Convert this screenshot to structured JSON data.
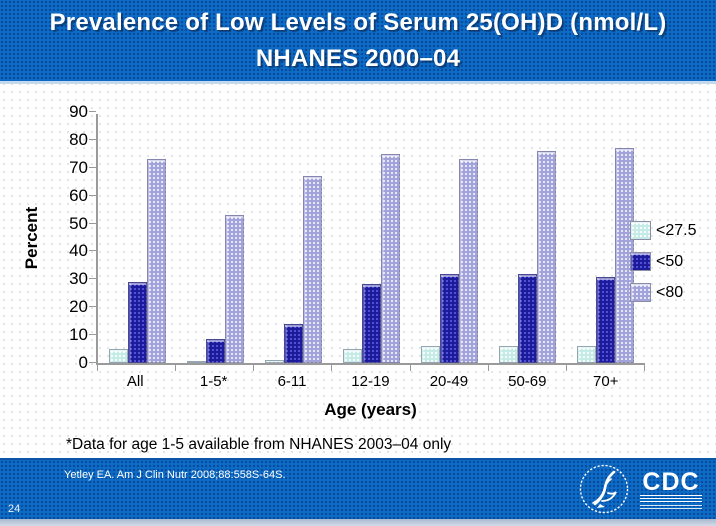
{
  "slide": {
    "title_line1": "Prevalence of Low Levels of Serum 25(OH)D (nmol/L)",
    "title_line2": "NHANES 2000–04",
    "footnote": "*Data for age 1-5 available from NHANES 2003–04 only",
    "page_number": "24"
  },
  "footer": {
    "citation": "Yetley EA. Am J Clin Nutr 2008;88:558S-64S.",
    "cdc_logo_text": "CDC"
  },
  "colors": {
    "band_blue": "#0d6cc6",
    "axis_gray": "#9a9a9a"
  },
  "chart_data": {
    "type": "bar",
    "title": "Prevalence of Low Levels of Serum 25(OH)D (nmol/L) NHANES 2000–04",
    "categories": [
      "All",
      "1-5*",
      "6-11",
      "12-19",
      "20-49",
      "50-69",
      "70+"
    ],
    "series": [
      {
        "name": "<27.5",
        "color": "#c5ebe6",
        "values": [
          5,
          0.5,
          1,
          5,
          6,
          6,
          6
        ]
      },
      {
        "name": "<50",
        "color": "#1b1b9c",
        "values": [
          29,
          8.5,
          14,
          28.5,
          32,
          32,
          31
        ]
      },
      {
        "name": "<80",
        "color": "#a3a3dc",
        "values": [
          73,
          53,
          67,
          75,
          73,
          76,
          77
        ]
      }
    ],
    "xlabel": "Age (years)",
    "ylabel": "Percent",
    "ylim": [
      0,
      90
    ],
    "yticks": [
      0,
      10,
      20,
      30,
      40,
      50,
      60,
      70,
      80,
      90
    ],
    "legend_position": "right",
    "grid": false
  }
}
